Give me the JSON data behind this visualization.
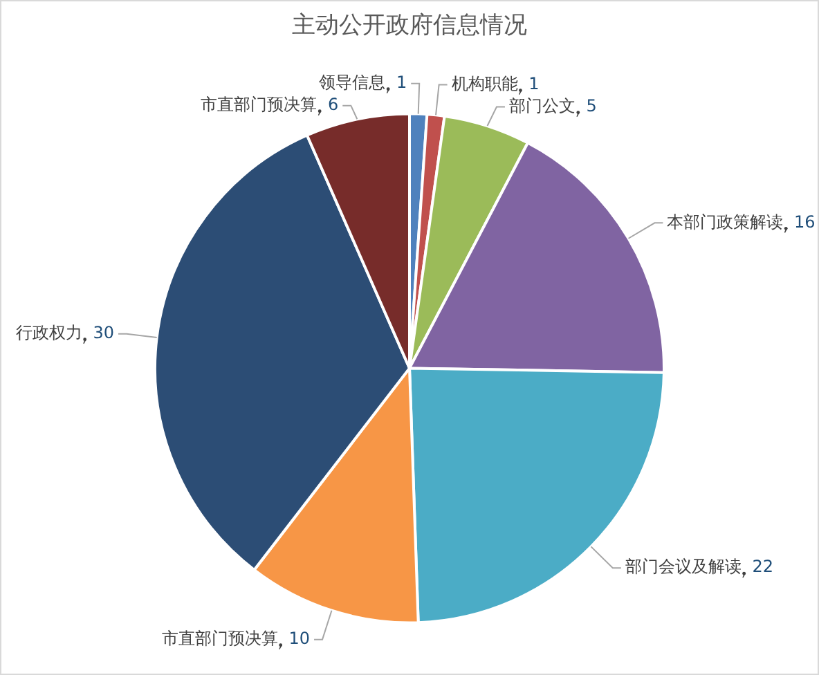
{
  "chart_data": {
    "type": "pie",
    "title": "主动公开政府信息情况",
    "categories": [
      "领导信息",
      "机构职能",
      "部门公文",
      "本部门政策解读",
      "部门会议及解读",
      "市直部门预决算",
      "行政权力",
      "市直部门预决算"
    ],
    "values": [
      1,
      1,
      5,
      16,
      22,
      10,
      30,
      6
    ],
    "colors": [
      "#4f81bd",
      "#c0504d",
      "#9bbb59",
      "#8064a2",
      "#4bacc6",
      "#f79646",
      "#2c4d75",
      "#772c2a"
    ],
    "data_labels": true,
    "legend": false
  }
}
